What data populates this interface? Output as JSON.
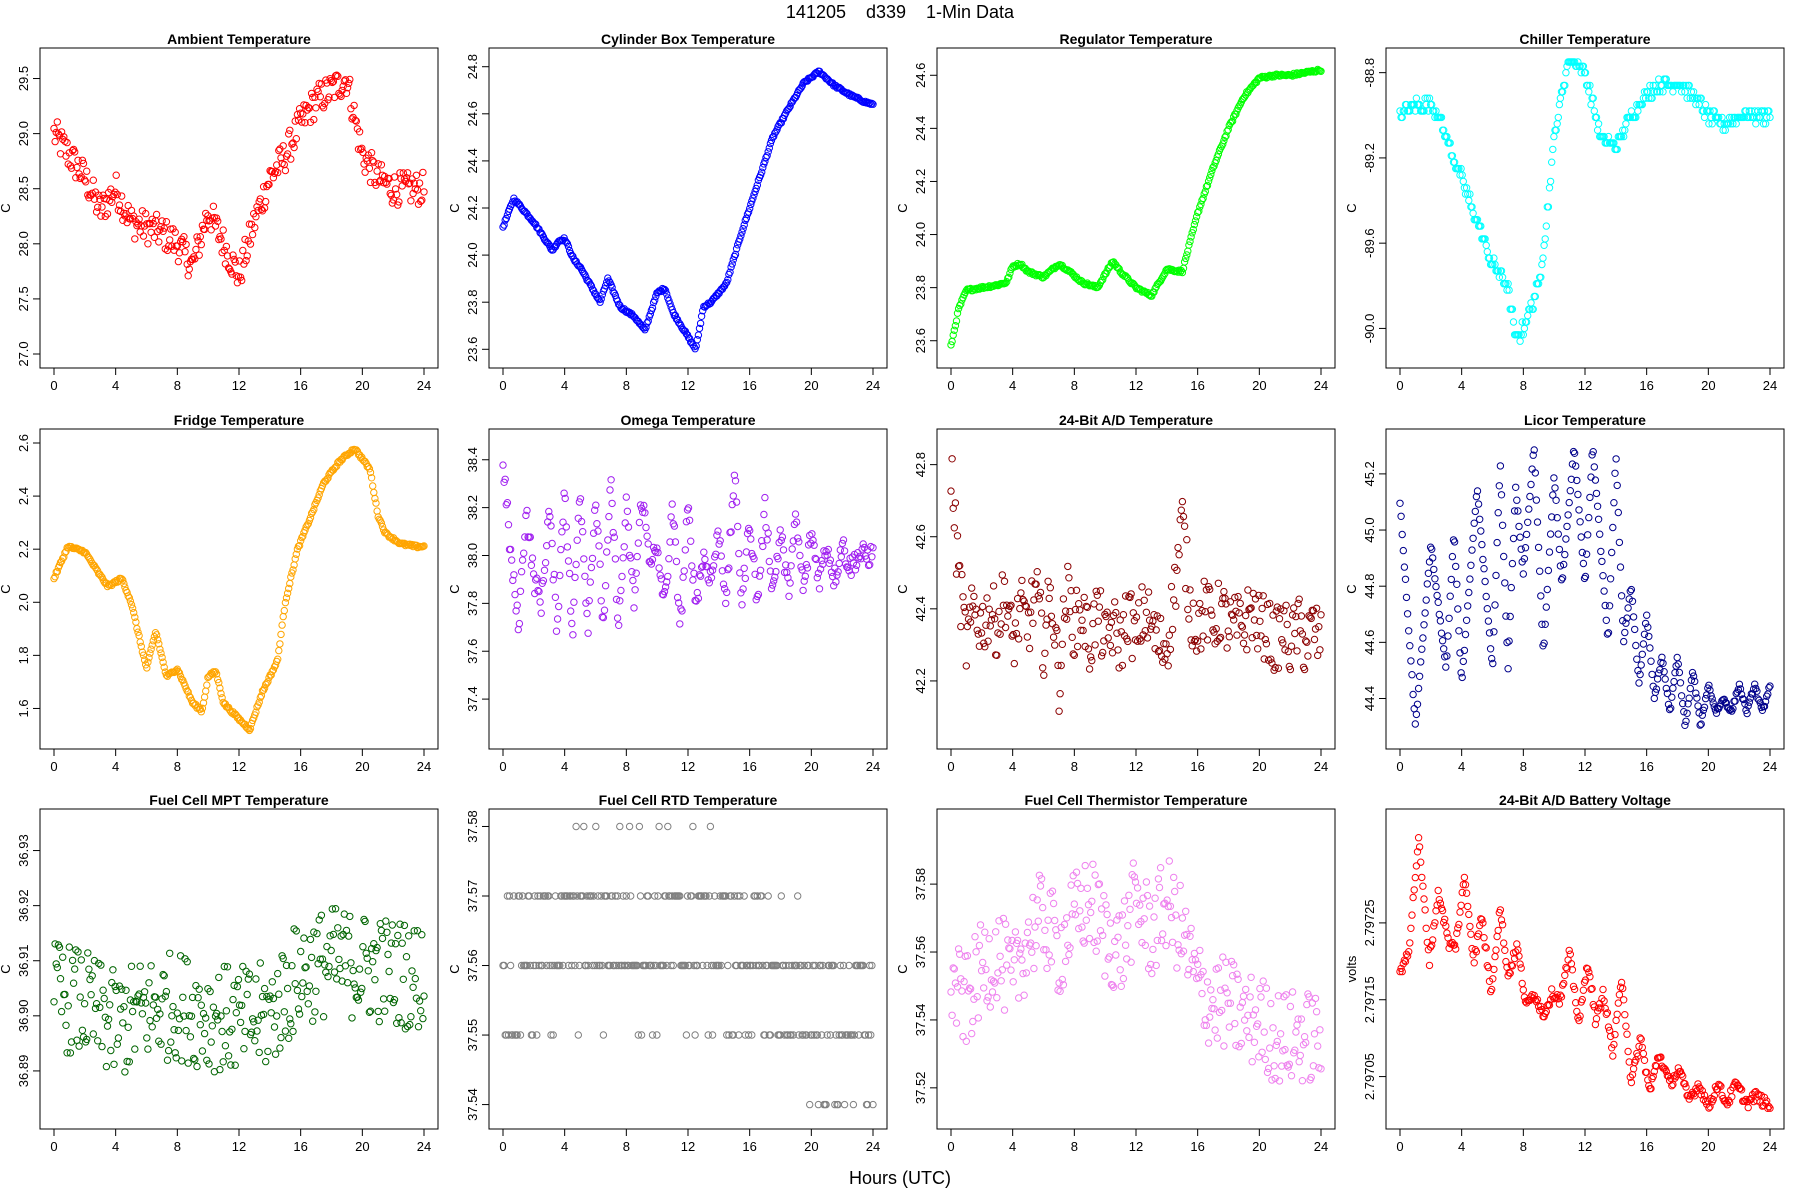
{
  "figure": {
    "title": "141205    d339    1-Min Data",
    "xlabel": "Hours (UTC)"
  },
  "chart_data": [
    {
      "type": "scatter",
      "title": "Ambient Temperature",
      "ylabel": "C",
      "color": "#ff0000",
      "xlim": [
        0,
        24
      ],
      "ylim": [
        27.0,
        29.65
      ],
      "xticks": [
        0,
        4,
        8,
        12,
        16,
        20,
        24
      ],
      "yticks": [
        27.0,
        27.5,
        28.0,
        28.5,
        29.0,
        29.5
      ],
      "ytick_labels": [
        "27.0",
        "27.5",
        "28.0",
        "28.5",
        "29.0",
        "29.5"
      ],
      "x": [
        0,
        1,
        2,
        3,
        4,
        5,
        6,
        7,
        8,
        9,
        10,
        11,
        12,
        13,
        14,
        15,
        16,
        17,
        18,
        19,
        20,
        21,
        22,
        23,
        24
      ],
      "y": [
        29.0,
        28.8,
        28.6,
        28.3,
        28.5,
        28.2,
        28.15,
        28.1,
        28.0,
        27.8,
        28.3,
        28.0,
        27.7,
        28.2,
        28.6,
        28.8,
        29.1,
        29.3,
        29.4,
        29.5,
        28.8,
        28.6,
        28.5,
        28.5,
        28.5
      ],
      "noise": 0.15
    },
    {
      "type": "scatter",
      "title": "Cylinder Box Temperature",
      "ylabel": "C",
      "color": "#0000ff",
      "xlim": [
        0,
        24
      ],
      "ylim": [
        23.58,
        24.82
      ],
      "xticks": [
        0,
        4,
        8,
        12,
        16,
        20,
        24
      ],
      "yticks": [
        23.6,
        23.8,
        24.0,
        24.2,
        24.4,
        24.6,
        24.8
      ],
      "ytick_labels": [
        "23.6",
        "23.8",
        "24.0",
        "24.2",
        "24.4",
        "24.6",
        "24.8"
      ],
      "x": [
        0,
        0.7,
        2,
        3.2,
        3.6,
        4,
        4.6,
        5,
        6.3,
        6.8,
        7.6,
        8.5,
        9.2,
        10,
        10.5,
        11,
        12.5,
        13,
        13.5,
        14.5,
        15.5,
        16.5,
        17.5,
        18.5,
        19.5,
        20.5,
        21.5,
        22.5,
        23.5,
        24
      ],
      "y": [
        24.12,
        24.24,
        24.14,
        24.02,
        24.06,
        24.07,
        23.98,
        23.95,
        23.8,
        23.9,
        23.78,
        23.74,
        23.68,
        23.84,
        23.86,
        23.76,
        23.6,
        23.78,
        23.8,
        23.88,
        24.1,
        24.3,
        24.5,
        24.62,
        24.73,
        24.78,
        24.72,
        24.68,
        24.65,
        24.64
      ],
      "noise": 0.005
    },
    {
      "type": "scatter",
      "title": "Regulator Temperature",
      "ylabel": "C",
      "color": "#00ff00",
      "xlim": [
        0,
        24
      ],
      "ylim": [
        23.55,
        24.65
      ],
      "xticks": [
        0,
        4,
        8,
        12,
        16,
        20,
        24
      ],
      "yticks": [
        23.6,
        23.8,
        24.0,
        24.2,
        24.4,
        24.6
      ],
      "ytick_labels": [
        "23.6",
        "23.8",
        "24.0",
        "24.2",
        "24.4",
        "24.6"
      ],
      "x": [
        0,
        0.5,
        1,
        2,
        3,
        3.6,
        4,
        4.5,
        5,
        6,
        7,
        7.5,
        8.5,
        9.5,
        10.5,
        11,
        12,
        13,
        14,
        15,
        16,
        17,
        18,
        19,
        20,
        21,
        22,
        23,
        24
      ],
      "y": [
        23.58,
        23.72,
        23.79,
        23.8,
        23.81,
        23.82,
        23.88,
        23.89,
        23.86,
        23.84,
        23.89,
        23.87,
        23.82,
        23.8,
        23.9,
        23.86,
        23.8,
        23.77,
        23.87,
        23.86,
        24.08,
        24.25,
        24.4,
        24.52,
        24.59,
        24.6,
        24.6,
        24.61,
        24.62
      ],
      "noise": 0.005
    },
    {
      "type": "scatter",
      "title": "Chiller Temperature",
      "ylabel": "C",
      "color": "#00ffff",
      "xlim": [
        0,
        24
      ],
      "ylim": [
        -90.12,
        -88.75
      ],
      "xticks": [
        0,
        4,
        8,
        12,
        16,
        20,
        24
      ],
      "yticks": [
        -90.0,
        -89.6,
        -89.2,
        -88.8
      ],
      "ytick_labels": [
        "-90.0",
        "-89.6",
        "-89.2",
        "-88.8"
      ],
      "x": [
        0,
        1,
        2,
        2.5,
        3,
        3.5,
        4,
        4.5,
        5,
        5.5,
        6,
        6.5,
        7,
        7.5,
        8,
        8.5,
        9,
        9.5,
        10,
        10.5,
        11,
        12,
        13,
        14,
        15,
        16,
        17,
        18,
        19,
        20,
        21,
        22,
        23,
        24
      ],
      "y": [
        -89.0,
        -88.95,
        -88.95,
        -89.0,
        -89.1,
        -89.2,
        -89.3,
        -89.4,
        -89.5,
        -89.6,
        -89.7,
        -89.75,
        -89.8,
        -90.05,
        -90.0,
        -89.9,
        -89.8,
        -89.5,
        -89.1,
        -88.9,
        -88.7,
        -88.8,
        -89.1,
        -89.15,
        -89.0,
        -88.9,
        -88.85,
        -88.85,
        -88.9,
        -89.0,
        -89.05,
        -89.0,
        -89.0,
        -89.0
      ],
      "noise": 0.03,
      "quant": 0.03
    },
    {
      "type": "scatter",
      "title": "Fridge Temperature",
      "ylabel": "C",
      "color": "#ffa500",
      "xlim": [
        0,
        24
      ],
      "ylim": [
        1.5,
        2.6
      ],
      "xticks": [
        0,
        4,
        8,
        12,
        16,
        20,
        24
      ],
      "yticks": [
        1.6,
        1.8,
        2.0,
        2.2,
        2.4,
        2.6
      ],
      "ytick_labels": [
        "1.6",
        "1.8",
        "2.0",
        "2.2",
        "2.4",
        "2.6"
      ],
      "x": [
        0,
        0.9,
        2,
        3,
        3.5,
        4.4,
        5,
        6,
        6.6,
        7.3,
        8,
        9,
        9.6,
        10,
        10.5,
        11,
        12,
        12.7,
        13.5,
        14.5,
        15,
        15.8,
        16.5,
        17.5,
        18.5,
        19.5,
        20.5,
        21,
        21.5,
        22.5,
        23.5,
        24
      ],
      "y": [
        2.09,
        2.21,
        2.19,
        2.1,
        2.06,
        2.09,
        2.0,
        1.75,
        1.89,
        1.72,
        1.75,
        1.62,
        1.59,
        1.72,
        1.74,
        1.62,
        1.56,
        1.52,
        1.66,
        1.78,
        2.0,
        2.2,
        2.3,
        2.45,
        2.53,
        2.58,
        2.5,
        2.33,
        2.26,
        2.22,
        2.21,
        2.21
      ],
      "noise": 0.005
    },
    {
      "type": "scatter",
      "title": "Omega Temperature",
      "ylabel": "C",
      "color": "#a020f0",
      "xlim": [
        0,
        24
      ],
      "ylim": [
        37.25,
        38.47
      ],
      "xticks": [
        0,
        4,
        8,
        12,
        16,
        20,
        24
      ],
      "yticks": [
        37.4,
        37.6,
        37.8,
        38.0,
        38.2,
        38.4
      ],
      "ytick_labels": [
        "37.4",
        "37.6",
        "37.8",
        "38.0",
        "38.2",
        "38.4"
      ],
      "x": [
        0,
        0.5,
        1,
        1.5,
        2,
        2.5,
        3,
        3.5,
        4,
        4.5,
        5,
        5.5,
        6,
        6.5,
        7,
        7.5,
        8,
        8.5,
        9,
        9.5,
        10,
        10.5,
        11,
        11.5,
        12,
        12.5,
        13,
        13.5,
        14,
        14.5,
        15,
        15.5,
        16,
        16.5,
        17,
        17.5,
        18,
        18.5,
        19,
        19.5,
        20,
        20.5,
        21,
        21.5,
        22,
        22.5,
        23,
        23.5,
        24
      ],
      "y": [
        38.4,
        38.0,
        37.7,
        38.2,
        37.9,
        37.8,
        38.2,
        37.7,
        38.3,
        37.65,
        38.3,
        37.7,
        38.25,
        37.7,
        38.3,
        37.7,
        38.2,
        37.8,
        38.25,
        38.0,
        38.0,
        37.8,
        38.2,
        37.7,
        38.2,
        37.8,
        38.0,
        37.9,
        38.1,
        37.8,
        38.35,
        37.8,
        38.15,
        37.8,
        38.2,
        37.85,
        38.1,
        37.85,
        38.15,
        37.85,
        38.1,
        37.9,
        38.05,
        37.9,
        38.05,
        37.95,
        38.0,
        38.0,
        38.0
      ],
      "noise": 0.05
    },
    {
      "type": "scatter",
      "title": "24-Bit A/D Temperature",
      "ylabel": "C",
      "color": "#8b0000",
      "xlim": [
        0,
        24
      ],
      "ylim": [
        42.05,
        42.86
      ],
      "xticks": [
        0,
        4,
        8,
        12,
        16,
        20,
        24
      ],
      "yticks": [
        42.2,
        42.4,
        42.6,
        42.8
      ],
      "ytick_labels": [
        "42.2",
        "42.4",
        "42.6",
        "42.8"
      ],
      "x": [
        0,
        0.3,
        0.6,
        1,
        1.5,
        2,
        2.5,
        3,
        3.5,
        4,
        4.5,
        5,
        5.5,
        6,
        6.5,
        7,
        7.5,
        8,
        8.5,
        9,
        9.5,
        10,
        10.5,
        11,
        11.5,
        12,
        12.5,
        13,
        13.5,
        14,
        14.5,
        15,
        15.5,
        16,
        16.5,
        17,
        17.5,
        18,
        18.5,
        19,
        19.5,
        20,
        20.5,
        21,
        21.5,
        22,
        22.5,
        23,
        23.5,
        24
      ],
      "y": [
        42.8,
        42.6,
        42.45,
        42.3,
        42.4,
        42.35,
        42.4,
        42.35,
        42.45,
        42.3,
        42.4,
        42.35,
        42.45,
        42.3,
        42.45,
        42.2,
        42.45,
        42.35,
        42.4,
        42.3,
        42.4,
        42.3,
        42.35,
        42.3,
        42.4,
        42.3,
        42.4,
        42.35,
        42.3,
        42.3,
        42.45,
        42.65,
        42.4,
        42.35,
        42.4,
        42.35,
        42.4,
        42.35,
        42.35,
        42.35,
        42.4,
        42.35,
        42.35,
        42.3,
        42.35,
        42.3,
        42.35,
        42.3,
        42.35,
        42.3
      ],
      "noise": 0.09
    },
    {
      "type": "scatter",
      "title": "Licor Temperature",
      "ylabel": "C",
      "color": "#00008b",
      "xlim": [
        0,
        24
      ],
      "ylim": [
        44.27,
        45.31
      ],
      "xticks": [
        0,
        4,
        8,
        12,
        16,
        20,
        24
      ],
      "yticks": [
        44.4,
        44.6,
        44.8,
        45.0,
        45.2
      ],
      "ytick_labels": [
        "44.4",
        "44.6",
        "44.8",
        "45.0",
        "45.2"
      ],
      "x": [
        0,
        1,
        2,
        3,
        3.5,
        4,
        5,
        6,
        6.5,
        7,
        7.5,
        8,
        8.7,
        9.3,
        10,
        10.5,
        11.3,
        12,
        12.5,
        13.5,
        14,
        14.5,
        15,
        15.5,
        16,
        16.5,
        17,
        17.5,
        18,
        18.5,
        19,
        19.5,
        20,
        20.5,
        21,
        21.5,
        22,
        22.5,
        23,
        23.5,
        24
      ],
      "y": [
        45.1,
        44.3,
        44.95,
        44.5,
        45.0,
        44.45,
        45.15,
        44.5,
        45.25,
        44.5,
        45.15,
        44.85,
        45.3,
        44.55,
        45.2,
        44.8,
        45.3,
        44.8,
        45.3,
        44.6,
        45.27,
        44.6,
        44.8,
        44.45,
        44.7,
        44.4,
        44.55,
        44.35,
        44.55,
        44.3,
        44.5,
        44.3,
        44.45,
        44.35,
        44.4,
        44.35,
        44.45,
        44.35,
        44.45,
        44.35,
        44.45
      ],
      "noise": 0.008
    },
    {
      "type": "scatter",
      "title": "Fuel Cell MPT Temperature",
      "ylabel": "C",
      "color": "#006400",
      "xlim": [
        0,
        24
      ],
      "ylim": [
        36.882,
        36.935
      ],
      "xticks": [
        0,
        4,
        8,
        12,
        16,
        20,
        24
      ],
      "yticks": [
        36.89,
        36.9,
        36.91,
        36.92,
        36.93
      ],
      "ytick_labels": [
        "36.89",
        "36.90",
        "36.91",
        "36.92",
        "36.93"
      ],
      "x": [
        0,
        2,
        4,
        6,
        8,
        10,
        12,
        14,
        16,
        18,
        20,
        22,
        24
      ],
      "y": [
        36.904,
        36.902,
        36.898,
        36.901,
        36.902,
        36.9,
        36.899,
        36.9,
        36.908,
        36.91,
        36.909,
        36.908,
        36.907
      ],
      "noise": 0.01
    },
    {
      "type": "scatter",
      "title": "Fuel Cell RTD Temperature",
      "ylabel": "C",
      "color": "#808080",
      "xlim": [
        0,
        24
      ],
      "ylim": [
        37.5385,
        37.5805
      ],
      "xticks": [
        0,
        4,
        8,
        12,
        16,
        20,
        24
      ],
      "yticks": [
        37.54,
        37.55,
        37.56,
        37.57,
        37.58
      ],
      "ytick_labels": [
        "37.54",
        "37.55",
        "37.56",
        "37.57",
        "37.58"
      ],
      "x": [
        0,
        4,
        8,
        12,
        16,
        20,
        24
      ],
      "y": [
        37.56,
        37.565,
        37.565,
        37.565,
        37.56,
        37.553,
        37.552
      ],
      "noise": 0.012,
      "quant": 0.01
    },
    {
      "type": "scatter",
      "title": "Fuel Cell Thermistor Temperature",
      "ylabel": "C",
      "color": "#ee82ee",
      "xlim": [
        0,
        24
      ],
      "ylim": [
        37.512,
        37.598
      ],
      "xticks": [
        0,
        4,
        8,
        12,
        16,
        20,
        24
      ],
      "yticks": [
        37.52,
        37.54,
        37.56,
        37.58
      ],
      "ytick_labels": [
        "37.52",
        "37.54",
        "37.56",
        "37.58"
      ],
      "x": [
        0,
        1,
        2,
        3,
        4,
        5,
        6,
        7,
        8,
        9,
        10,
        11,
        12,
        13,
        14,
        15,
        16,
        17,
        18,
        19,
        20,
        21,
        22,
        23,
        24
      ],
      "y": [
        37.55,
        37.545,
        37.555,
        37.56,
        37.55,
        37.565,
        37.57,
        37.56,
        37.57,
        37.575,
        37.565,
        37.56,
        37.575,
        37.565,
        37.575,
        37.565,
        37.55,
        37.545,
        37.545,
        37.54,
        37.54,
        37.535,
        37.535,
        37.535,
        37.535
      ],
      "noise": 0.014
    },
    {
      "type": "scatter",
      "title": "24-Bit A/D Battery Voltage",
      "ylabel": "volts",
      "color": "#ff0000",
      "xlim": [
        0,
        24
      ],
      "ylim": [
        2.797,
        2.79738
      ],
      "xticks": [
        0,
        4,
        8,
        12,
        16,
        20,
        24
      ],
      "yticks": [
        2.79705,
        2.79715,
        2.79725
      ],
      "ytick_labels": [
        "2.79705",
        "2.79715",
        "2.79725"
      ],
      "x": [
        0,
        0.6,
        1.2,
        1.9,
        2.5,
        3.2,
        3.6,
        4.2,
        4.8,
        5.3,
        5.9,
        6.5,
        7,
        7.6,
        8.2,
        8.7,
        9.3,
        9.9,
        10.4,
        11,
        11.6,
        12.2,
        12.7,
        13.2,
        13.8,
        14.4,
        15,
        15.6,
        16.2,
        16.8,
        17.5,
        18.1,
        18.7,
        19.4,
        20,
        20.6,
        21.2,
        21.8,
        22.5,
        23.1,
        24
      ],
      "y": [
        2.79718,
        2.79722,
        2.79736,
        2.7972,
        2.79729,
        2.79722,
        2.79722,
        2.79731,
        2.7972,
        2.79726,
        2.79716,
        2.79727,
        2.79718,
        2.79722,
        2.79714,
        2.79716,
        2.79713,
        2.79716,
        2.79715,
        2.79721,
        2.79712,
        2.7972,
        2.79712,
        2.79716,
        2.79708,
        2.79718,
        2.79704,
        2.7971,
        2.79703,
        2.79708,
        2.79704,
        2.79706,
        2.79702,
        2.79704,
        2.79701,
        2.79704,
        2.797015,
        2.79704,
        2.797015,
        2.797025,
        2.79701
      ],
      "noise": 7e-06
    }
  ]
}
